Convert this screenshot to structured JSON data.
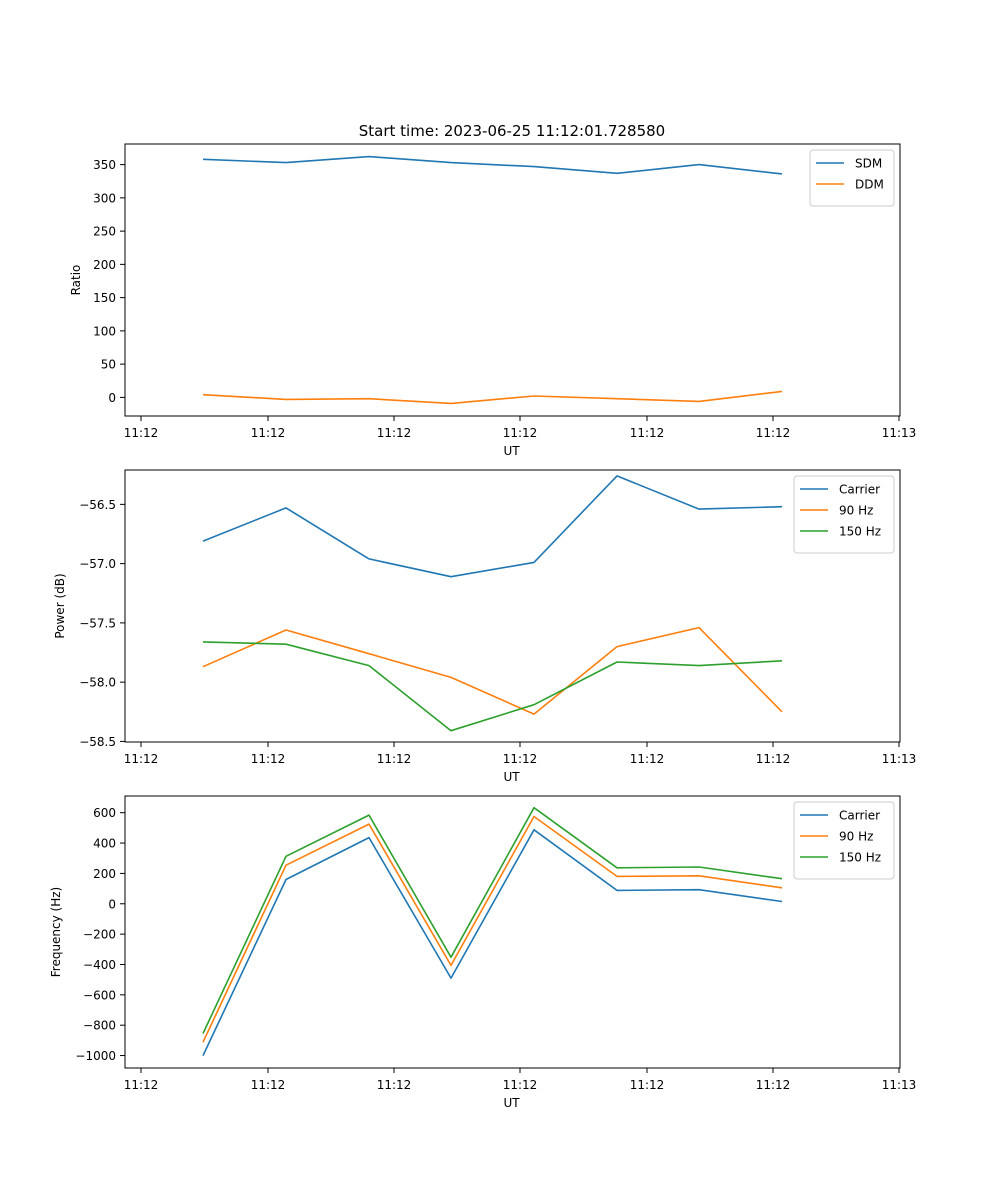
{
  "figure": {
    "title": "Start time: 2023-06-25 11:12:01.728580"
  },
  "chart_data": [
    {
      "type": "line",
      "xlabel": "UT",
      "ylabel": "Ratio",
      "x_tick_labels": [
        "11:12",
        "11:12",
        "11:12",
        "11:12",
        "11:12",
        "11:12",
        "11:13"
      ],
      "y_ticks": [
        0,
        50,
        100,
        150,
        200,
        250,
        300,
        350
      ],
      "ylim": [
        -28,
        381
      ],
      "legend_position": "upper-right",
      "series": [
        {
          "name": "SDM",
          "color": "#1f77b4",
          "values": [
            358,
            353,
            362,
            353,
            347,
            337,
            350,
            336
          ]
        },
        {
          "name": "DDM",
          "color": "#ff7f0e",
          "values": [
            4,
            -3,
            -2,
            -9,
            2,
            -2,
            -6,
            9
          ]
        }
      ]
    },
    {
      "type": "line",
      "xlabel": "UT",
      "ylabel": "Power (dB)",
      "x_tick_labels": [
        "11:12",
        "11:12",
        "11:12",
        "11:12",
        "11:12",
        "11:12",
        "11:13"
      ],
      "y_ticks": [
        -58.5,
        -58.0,
        -57.5,
        -57.0,
        -56.5
      ],
      "y_tick_labels": [
        "−58.5",
        "−58.0",
        "−57.5",
        "−57.0",
        "−56.5"
      ],
      "ylim": [
        -58.505,
        -56.21
      ],
      "legend_position": "upper-right",
      "series": [
        {
          "name": "Carrier",
          "color": "#1f77b4",
          "values": [
            -56.81,
            -56.53,
            -56.96,
            -57.11,
            -56.99,
            -56.26,
            -56.54,
            -56.52
          ]
        },
        {
          "name": "90 Hz",
          "color": "#ff7f0e",
          "values": [
            -57.87,
            -57.56,
            -57.76,
            -57.96,
            -58.27,
            -57.7,
            -57.54,
            -58.25
          ]
        },
        {
          "name": "150 Hz",
          "color": "#2ca02c",
          "values": [
            -57.66,
            -57.68,
            -57.86,
            -58.41,
            -58.19,
            -57.83,
            -57.86,
            -57.82
          ]
        }
      ]
    },
    {
      "type": "line",
      "xlabel": "UT",
      "ylabel": "Frequency (Hz)",
      "x_tick_labels": [
        "11:12",
        "11:12",
        "11:12",
        "11:12",
        "11:12",
        "11:12",
        "11:13"
      ],
      "y_ticks": [
        -1000,
        -800,
        -600,
        -400,
        -200,
        0,
        200,
        400,
        600
      ],
      "y_tick_labels": [
        "−1000",
        "−800",
        "−600",
        "−400",
        "−200",
        "0",
        "200",
        "400",
        "600"
      ],
      "ylim": [
        -1082,
        710
      ],
      "legend_position": "upper-right",
      "series": [
        {
          "name": "Carrier",
          "color": "#1f77b4",
          "values": [
            -1000,
            160,
            436,
            -490,
            487,
            88,
            93,
            15
          ]
        },
        {
          "name": "90 Hz",
          "color": "#ff7f0e",
          "values": [
            -912,
            254,
            525,
            -406,
            575,
            180,
            184,
            105
          ]
        },
        {
          "name": "150 Hz",
          "color": "#2ca02c",
          "values": [
            -855,
            313,
            584,
            -352,
            633,
            237,
            242,
            165
          ]
        }
      ]
    }
  ]
}
